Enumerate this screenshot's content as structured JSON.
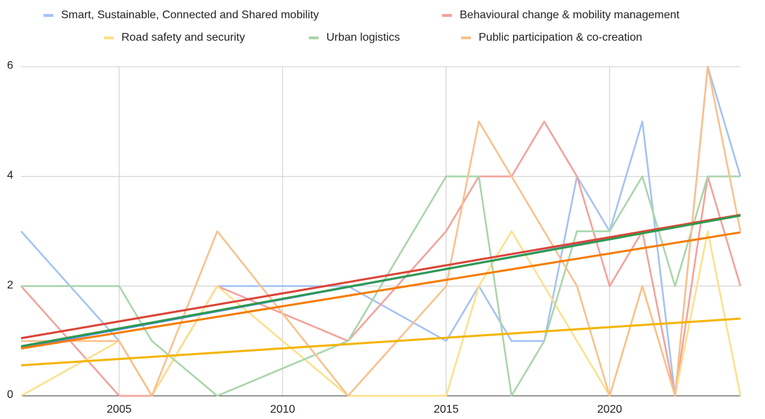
{
  "chart_data": {
    "type": "line",
    "xlim": [
      2002,
      2024
    ],
    "xticks": [
      2005,
      2010,
      2015,
      2020
    ],
    "ylim": [
      0,
      6
    ],
    "yticks": [
      0,
      2,
      4,
      6
    ],
    "grid": true,
    "trendlines": true,
    "series": [
      {
        "name": "Smart, Sustainable, Connected and Shared mobility",
        "color": "#a4c2f4",
        "trend_color": "#4285f4",
        "x": [
          2002,
          2005,
          2006,
          2008,
          2012,
          2015,
          2016,
          2017,
          2018,
          2019,
          2020,
          2021,
          2022,
          2023,
          2024
        ],
        "values": [
          3,
          1,
          0,
          2,
          2,
          1,
          2,
          1,
          1,
          4,
          3,
          5,
          0,
          6,
          4
        ]
      },
      {
        "name": "Behavioural change & mobility management",
        "color": "#f4a19a",
        "trend_color": "#db4437",
        "x": [
          2002,
          2005,
          2006,
          2008,
          2012,
          2015,
          2016,
          2017,
          2018,
          2019,
          2020,
          2021,
          2022,
          2023,
          2024
        ],
        "values": [
          2,
          0,
          0,
          2,
          1,
          3,
          4,
          4,
          5,
          4,
          2,
          3,
          0,
          4,
          2
        ]
      },
      {
        "name": "Road safety and security",
        "color": "#fde08a",
        "trend_color": "#f4b400",
        "x": [
          2002,
          2005,
          2006,
          2008,
          2012,
          2015,
          2016,
          2017,
          2018,
          2019,
          2020,
          2021,
          2022,
          2023,
          2024
        ],
        "values": [
          0,
          1,
          0,
          2,
          0,
          0,
          2,
          3,
          2,
          1,
          0,
          2,
          0,
          3,
          0
        ]
      },
      {
        "name": "Urban logistics",
        "color": "#a8d5a9",
        "trend_color": "#2e9a4f",
        "x": [
          2002,
          2005,
          2006,
          2008,
          2012,
          2015,
          2016,
          2017,
          2018,
          2019,
          2020,
          2021,
          2022,
          2023,
          2024
        ],
        "values": [
          2,
          2,
          1,
          0,
          1,
          4,
          4,
          0,
          1,
          3,
          3,
          4,
          2,
          4,
          4
        ]
      },
      {
        "name": "Public participation & co-creation",
        "color": "#f9c08c",
        "trend_color": "#f57c00",
        "x": [
          2002,
          2005,
          2006,
          2008,
          2012,
          2015,
          2016,
          2017,
          2018,
          2019,
          2020,
          2021,
          2022,
          2023,
          2024
        ],
        "values": [
          1,
          1,
          0,
          3,
          0,
          2,
          5,
          4,
          3,
          2,
          0,
          2,
          0,
          6,
          3
        ]
      }
    ]
  }
}
